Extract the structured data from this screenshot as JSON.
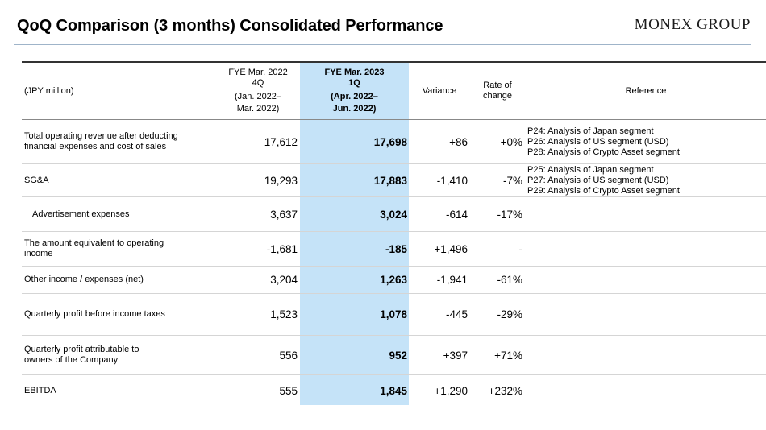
{
  "header": {
    "title": "QoQ Comparison (3 months) Consolidated Performance",
    "logo": "MONEX GROUP"
  },
  "table": {
    "columns": {
      "unit": "(JPY million)",
      "prev": {
        "line1": "FYE Mar. 2022",
        "line2": "4Q",
        "line3": "(Jan. 2022–",
        "line4": "Mar. 2022)"
      },
      "curr": {
        "line1": "FYE Mar. 2023",
        "line2": "1Q",
        "line3": "(Apr. 2022–",
        "line4": "Jun. 2022)"
      },
      "variance": "Variance",
      "rate_line1": "Rate of",
      "rate_line2": "change",
      "reference": "Reference"
    },
    "rows": [
      {
        "label_line1": "Total operating revenue after deducting",
        "label_line2": "financial expenses and cost of sales",
        "prev": "17,612",
        "curr": "17,698",
        "variance": "+86",
        "rate": "+0%",
        "refs": [
          "P24: Analysis of Japan segment",
          "P26: Analysis of US segment (USD)",
          "P28: Analysis of Crypto Asset segment"
        ]
      },
      {
        "label_line1": "SG&A",
        "label_line2": "",
        "prev": "19,293",
        "curr": "17,883",
        "variance": "-1,410",
        "rate": "-7%",
        "refs": [
          "P25: Analysis of Japan segment",
          "P27: Analysis of US segment (USD)",
          "P29: Analysis of Crypto Asset segment"
        ]
      },
      {
        "label_line1": "Advertisement expenses",
        "label_line2": "",
        "prev": "3,637",
        "curr": "3,024",
        "variance": "-614",
        "rate": "-17%",
        "refs": [
          "",
          "",
          ""
        ]
      },
      {
        "label_line1": "The amount equivalent to operating",
        "label_line2": "income",
        "prev": "-1,681",
        "curr": "-185",
        "variance": "+1,496",
        "rate": "-",
        "refs": [
          "",
          "",
          ""
        ]
      },
      {
        "label_line1": "Other income / expenses (net)",
        "label_line2": "",
        "prev": "3,204",
        "curr": "1,263",
        "variance": "-1,941",
        "rate": "-61%",
        "refs": [
          "",
          "",
          ""
        ]
      },
      {
        "label_line1": "Quarterly profit before income taxes",
        "label_line2": "",
        "prev": "1,523",
        "curr": "1,078",
        "variance": "-445",
        "rate": "-29%",
        "refs": [
          "",
          "",
          ""
        ]
      },
      {
        "label_line1": "Quarterly profit attributable to",
        "label_line2": "owners of the Company",
        "prev": "556",
        "curr": "952",
        "variance": "+397",
        "rate": "+71%",
        "refs": [
          "",
          "",
          ""
        ]
      },
      {
        "label_line1": "EBITDA",
        "label_line2": "",
        "prev": "555",
        "curr": "1,845",
        "variance": "+1,290",
        "rate": "+232%",
        "refs": [
          "",
          "",
          ""
        ]
      }
    ]
  },
  "colors": {
    "highlight": "#c5e3f8",
    "rule": "#9fb4c9",
    "text": "#000000"
  }
}
